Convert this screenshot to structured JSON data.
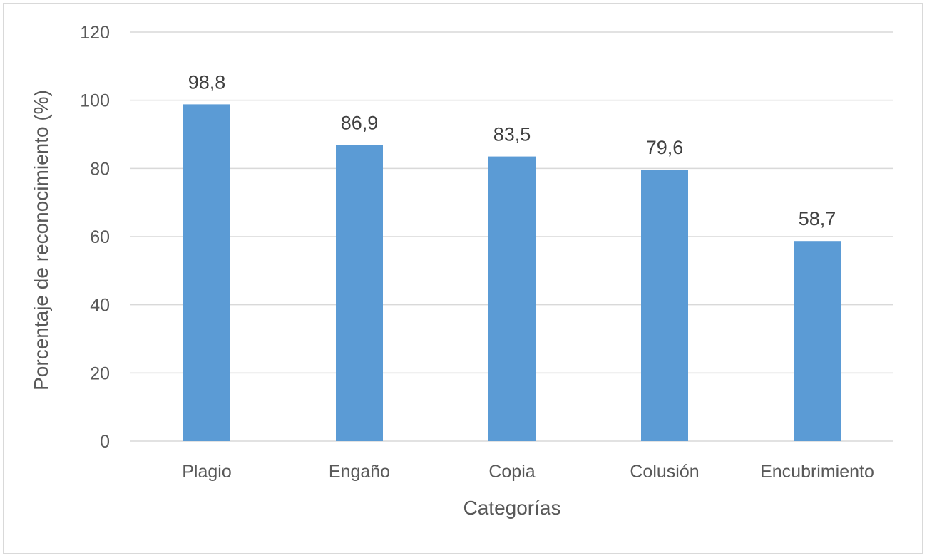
{
  "chart_data": {
    "type": "bar",
    "categories": [
      "Plagio",
      "Engaño",
      "Copia",
      "Colusión",
      "Encubrimiento"
    ],
    "values": [
      98.8,
      86.9,
      83.5,
      79.6,
      58.7
    ],
    "data_labels": [
      "98,8",
      "86,9",
      "83,5",
      "79,6",
      "58,7"
    ],
    "xlabel": "Categorías",
    "ylabel": "Porcentaje de reconocimiento (%)",
    "ylim": [
      0,
      120
    ],
    "yticks": [
      0,
      20,
      40,
      60,
      80,
      100,
      120
    ],
    "grid": true,
    "legend": "none",
    "bar_color": "#5b9bd5",
    "grid_color": "#d9d9d9"
  }
}
